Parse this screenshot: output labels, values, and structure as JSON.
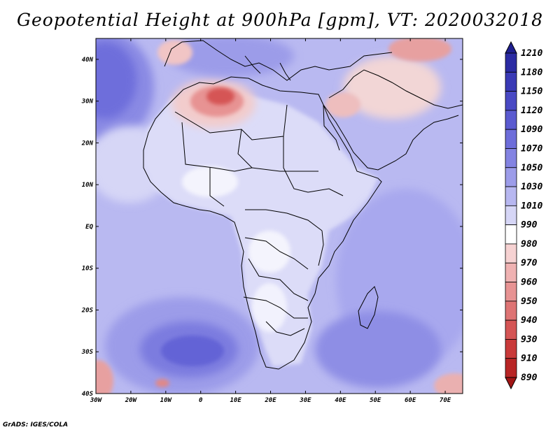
{
  "title": "Geopotential Height at 900hPa [gpm], VT: 2020032018",
  "credit": "GrADS: IGES/COLA",
  "axes": {
    "lat_labels": [
      "40N",
      "30N",
      "20N",
      "10N",
      "EQ",
      "10S",
      "20S",
      "30S",
      "40S"
    ],
    "lon_labels": [
      "30W",
      "20W",
      "10W",
      "0",
      "10E",
      "20E",
      "30E",
      "40E",
      "50E",
      "60E",
      "70E"
    ]
  },
  "colorbar": {
    "levels": [
      "1210",
      "1180",
      "1150",
      "1120",
      "1090",
      "1070",
      "1050",
      "1030",
      "1010",
      "990",
      "980",
      "970",
      "960",
      "950",
      "940",
      "930",
      "910",
      "890"
    ],
    "colors": [
      "#1f1f8f",
      "#2b2ba3",
      "#3a3ab6",
      "#4949c4",
      "#5a5ad0",
      "#6d6dda",
      "#8383e2",
      "#9c9ce9",
      "#b7b7f0",
      "#d6d6f6",
      "#ffffff",
      "#f6d2d2",
      "#efb2b2",
      "#e79393",
      "#de7474",
      "#d55555",
      "#c93a3a",
      "#b82525",
      "#a11515"
    ]
  },
  "colors": {
    "ocean_base": "#aeaef0",
    "land_base": "#d4d4f6",
    "border": "#000000"
  }
}
